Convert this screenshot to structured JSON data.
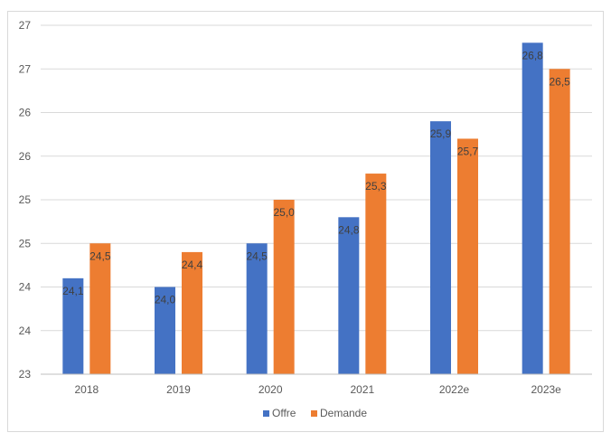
{
  "chart_data": {
    "type": "bar",
    "title": "",
    "xlabel": "",
    "ylabel": "",
    "ylim": [
      23,
      27
    ],
    "y_tick_values": [
      23,
      23.5,
      24,
      24.5,
      25,
      25.5,
      26,
      26.5,
      27
    ],
    "y_tick_labels": [
      "23",
      "24",
      "24",
      "25",
      "25",
      "26",
      "26",
      "27",
      "27"
    ],
    "categories": [
      "2018",
      "2019",
      "2020",
      "2021",
      "2022e",
      "2023e"
    ],
    "series": [
      {
        "name": "Offre",
        "color": "#4472c4",
        "values": [
          24.1,
          24.0,
          24.5,
          24.8,
          25.9,
          26.8
        ],
        "labels": [
          "24,1",
          "24,0",
          "24,5",
          "24,8",
          "25,9",
          "26,8"
        ]
      },
      {
        "name": "Demande",
        "color": "#ed7d31",
        "values": [
          24.5,
          24.4,
          25.0,
          25.3,
          25.7,
          26.5
        ],
        "labels": [
          "24,5",
          "24,4",
          "25,0",
          "25,3",
          "25,7",
          "26,5"
        ]
      }
    ],
    "grid": true,
    "legend_position": "bottom"
  }
}
